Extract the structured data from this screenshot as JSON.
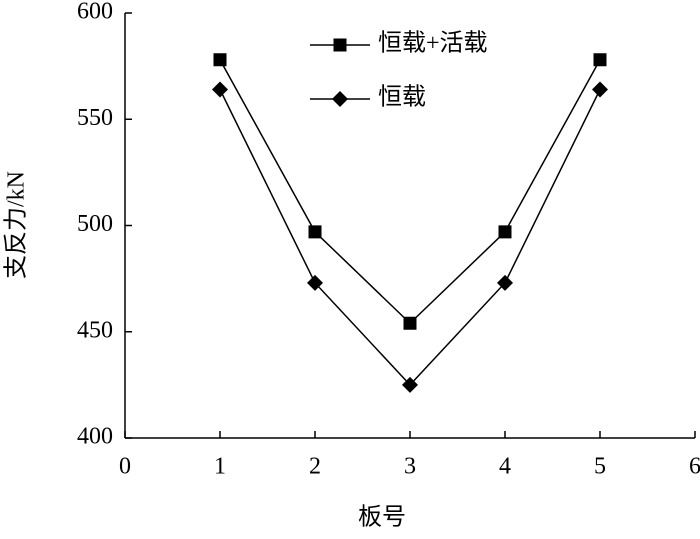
{
  "chart_data": {
    "type": "line",
    "xlabel": "板号",
    "ylabel": "支反力/kN",
    "x": [
      1,
      2,
      3,
      4,
      5
    ],
    "series": [
      {
        "name": "恒载+活载",
        "color": "#000000",
        "marker": "square",
        "values": [
          578,
          497,
          454,
          497,
          578
        ]
      },
      {
        "name": "恒载",
        "color": "#000000",
        "marker": "diamond",
        "values": [
          564,
          473,
          425,
          473,
          564
        ]
      }
    ],
    "xlim": [
      0,
      6
    ],
    "xticks": [
      0,
      1,
      2,
      3,
      4,
      5,
      6
    ],
    "ylim": [
      400,
      600
    ],
    "yticks": [
      400,
      450,
      500,
      550,
      600
    ],
    "grid": false,
    "legend": "top"
  }
}
